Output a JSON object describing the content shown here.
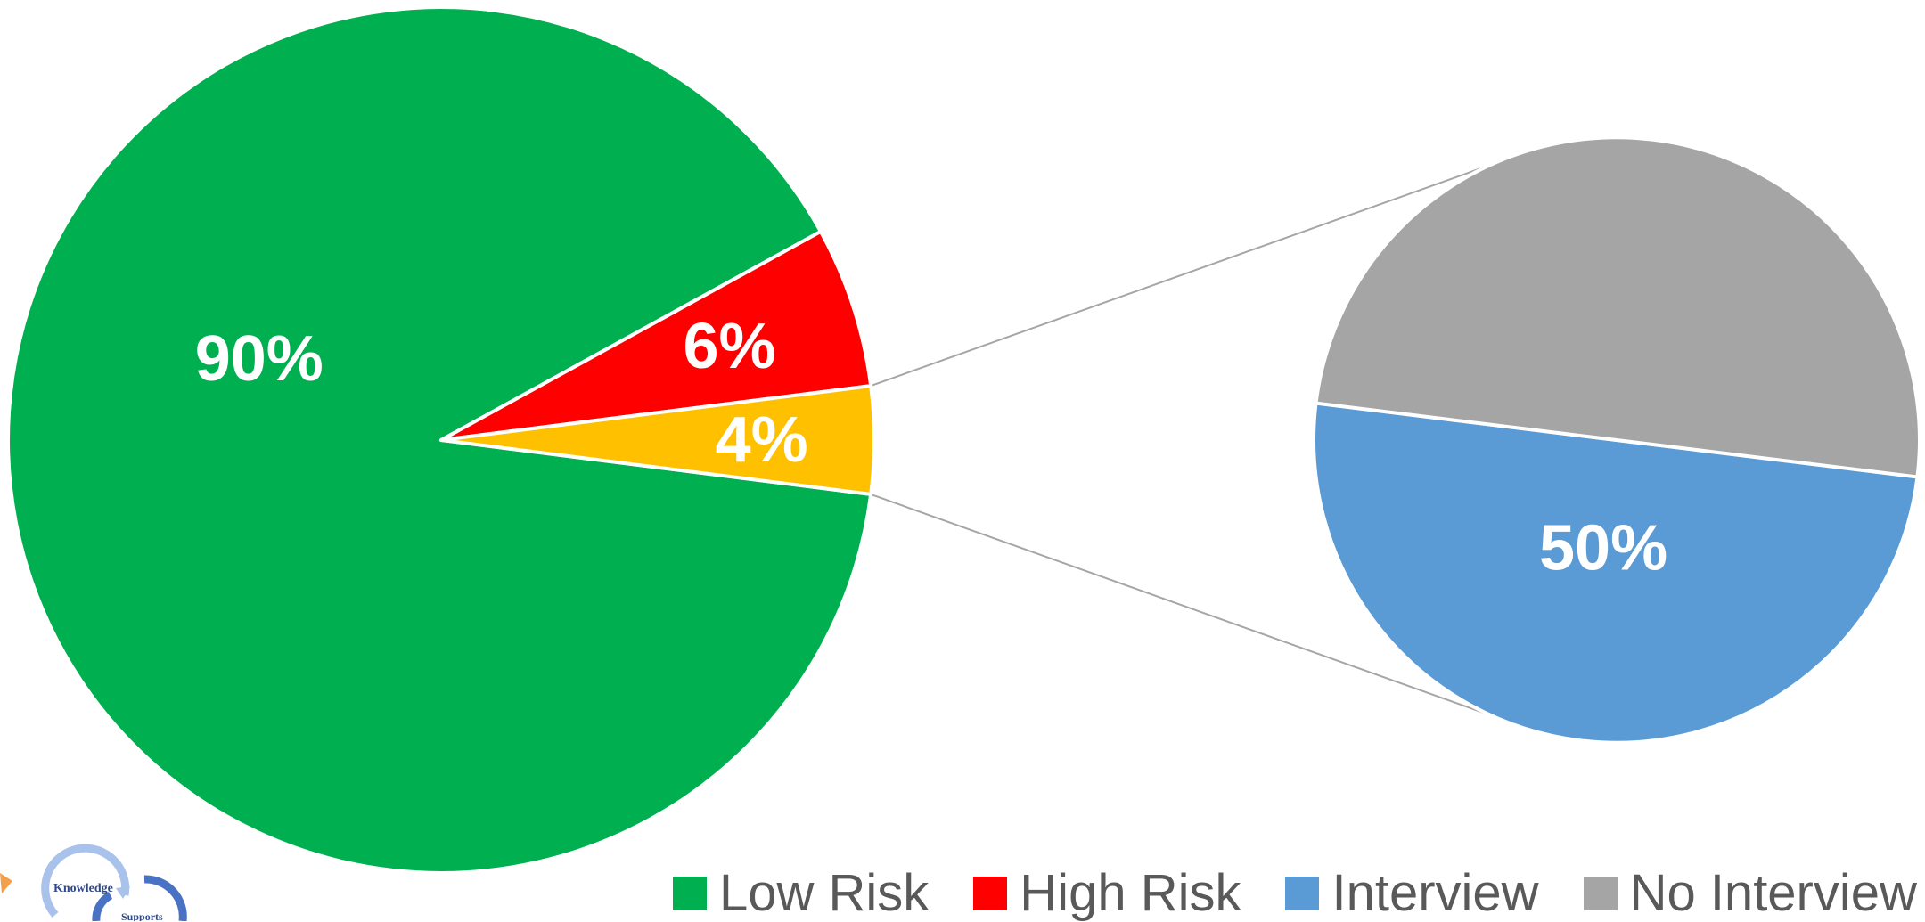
{
  "chart_data": {
    "type": "pie",
    "subtype": "pie-of-pie",
    "primary": {
      "slices": [
        {
          "name": "Low Risk",
          "value": 90,
          "label": "90%",
          "color": "#00B050"
        },
        {
          "name": "High Risk",
          "value": 6,
          "label": "6%",
          "color": "#FF0000"
        },
        {
          "name": "",
          "value": 4,
          "label": "4%",
          "color": "#FFC000"
        }
      ]
    },
    "secondary": {
      "slices": [
        {
          "name": "Interview",
          "value": 50,
          "label": "50%",
          "color": "#5B9BD5"
        },
        {
          "name": "No Interview",
          "value": 50,
          "label": "",
          "color": "#A5A5A5"
        }
      ]
    },
    "legend": {
      "position": "bottom",
      "items": [
        {
          "label": "Low Risk",
          "color": "#00B050"
        },
        {
          "label": "High Risk",
          "color": "#FF0000"
        },
        {
          "label": "Interview",
          "color": "#5B9BD5"
        },
        {
          "label": "No Interview",
          "color": "#A5A5A5"
        }
      ]
    }
  },
  "logo": {
    "icon": "cycle-arrows-logo",
    "text_1": "Knowledge",
    "text_2": "Supports"
  }
}
